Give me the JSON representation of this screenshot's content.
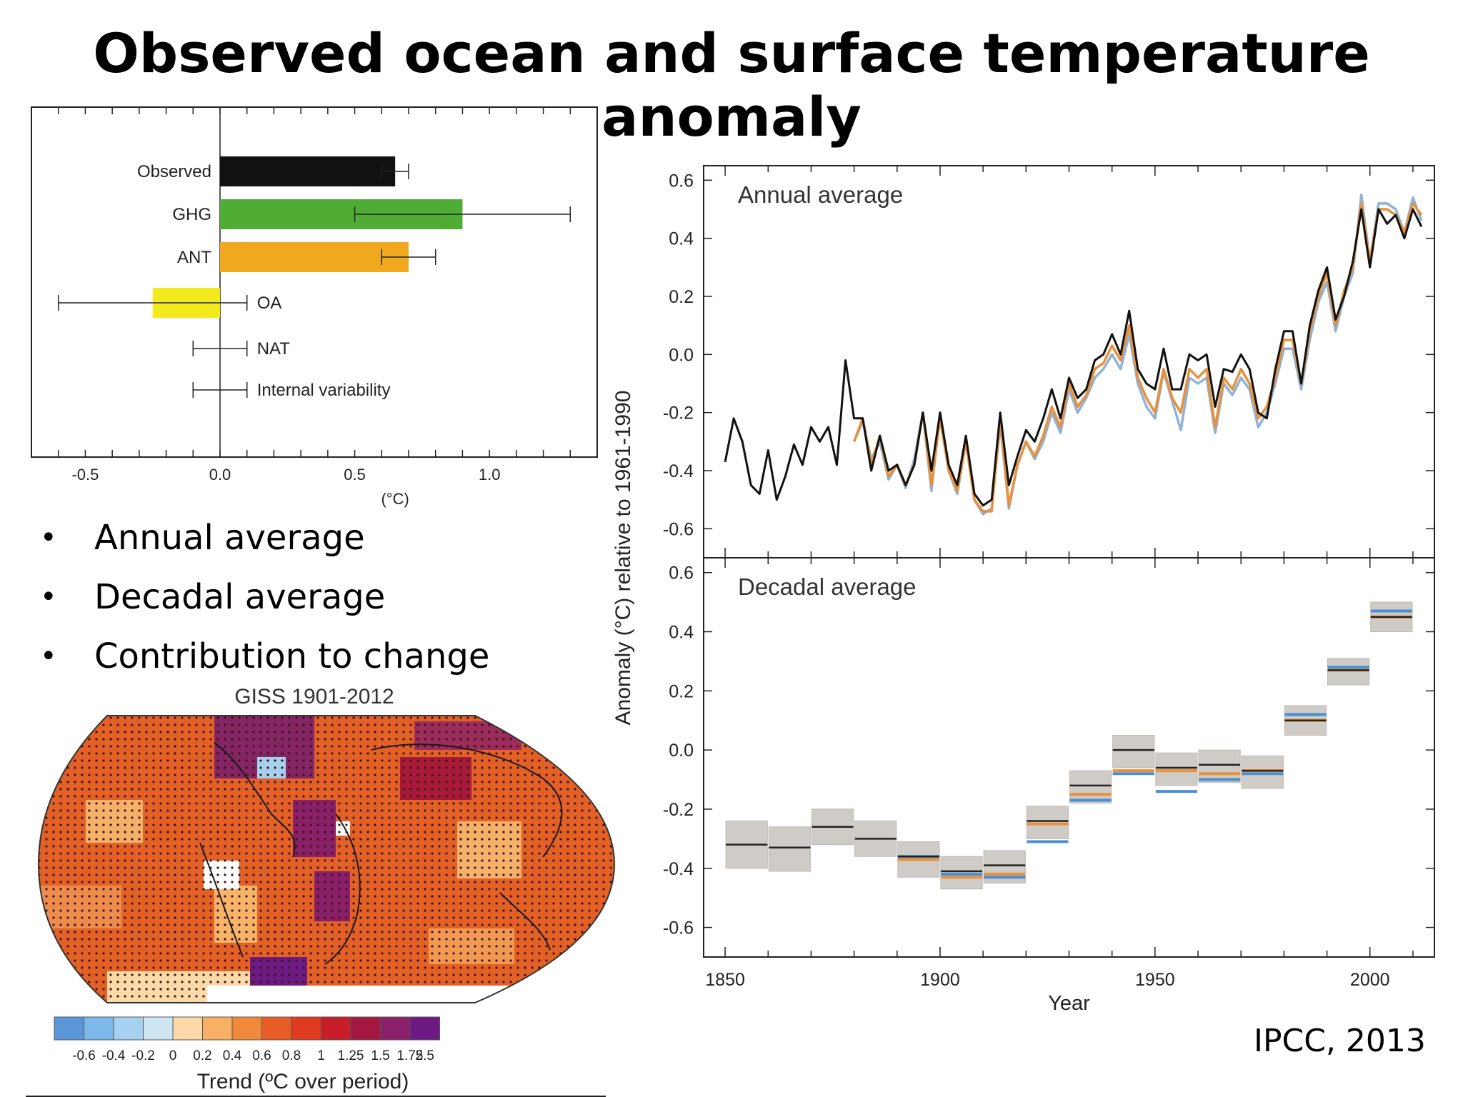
{
  "title": "Observed ocean and surface temperature anomaly",
  "bullets": [
    "Annual average",
    "Decadal average",
    "Contribution to change"
  ],
  "credit": "IPCC, 2013",
  "colors": {
    "observed": "#111111",
    "ghg": "#4fac34",
    "ant": "#f0a81f",
    "oa": "#f2ea1c",
    "series_orange": "#e8913c",
    "series_blue": "#8fb3d6",
    "decadal_box": "#cfcbc6",
    "decadal_blue": "#4a8fd4",
    "decadal_orange": "#e8913c"
  },
  "map": {
    "title": "GISS 1901-2012",
    "colorbar_label": "Trend (ºC over period)",
    "colorbar_ticks": [
      "-0.6",
      "-0.4",
      "-0.2",
      "0",
      "0.2",
      "0.4",
      "0.6",
      "0.8",
      "1",
      "1.25",
      "1.5",
      "1.75",
      "2.5"
    ],
    "colorbar_colors": [
      "#5b97d8",
      "#7cb9ea",
      "#a6d2f0",
      "#cde6f2",
      "#fbd9a8",
      "#f7b066",
      "#f08a3a",
      "#e85d25",
      "#e03a1f",
      "#c81e2a",
      "#a31740",
      "#8a1f6a",
      "#6e1a84"
    ]
  },
  "chart_data": [
    {
      "type": "bar",
      "orientation": "horizontal",
      "xlabel": "(°C)",
      "xlim": [
        -0.7,
        1.4
      ],
      "xticks": [
        "-0.5",
        "0.0",
        "0.5",
        "1.0"
      ],
      "categories": [
        "Observed",
        "GHG",
        "ANT",
        "OA",
        "NAT",
        "Internal variability"
      ],
      "values": [
        0.65,
        0.9,
        0.7,
        -0.25,
        0.0,
        0.0
      ],
      "error_low": [
        0.6,
        0.5,
        0.6,
        -0.6,
        -0.1,
        -0.1
      ],
      "error_high": [
        0.7,
        1.3,
        0.8,
        0.1,
        0.1,
        0.1
      ],
      "bar_colors": [
        "#111111",
        "#4fac34",
        "#f0a81f",
        "#f2ea1c",
        null,
        null
      ]
    },
    {
      "type": "line",
      "panel_label": "Annual average",
      "ylabel": "Anomaly (°C) relative to 1961-1990",
      "xlabel": "Year",
      "xlim": [
        1845,
        2015
      ],
      "ylim": [
        -0.7,
        0.65
      ],
      "yticks": [
        "0.6",
        "0.4",
        "0.2",
        "0.0",
        "-0.2",
        "-0.4",
        "-0.6"
      ],
      "xticks": [
        "1850",
        "1900",
        "1950",
        "2000"
      ],
      "x": [
        1850,
        1852,
        1854,
        1856,
        1858,
        1860,
        1862,
        1864,
        1866,
        1868,
        1870,
        1872,
        1874,
        1876,
        1878,
        1880,
        1882,
        1884,
        1886,
        1888,
        1890,
        1892,
        1894,
        1896,
        1898,
        1900,
        1902,
        1904,
        1906,
        1908,
        1910,
        1912,
        1914,
        1916,
        1918,
        1920,
        1922,
        1924,
        1926,
        1928,
        1930,
        1932,
        1934,
        1936,
        1938,
        1940,
        1942,
        1944,
        1946,
        1948,
        1950,
        1952,
        1954,
        1956,
        1958,
        1960,
        1962,
        1964,
        1966,
        1968,
        1970,
        1972,
        1974,
        1976,
        1978,
        1980,
        1982,
        1984,
        1986,
        1988,
        1990,
        1992,
        1994,
        1996,
        1998,
        2000,
        2002,
        2004,
        2006,
        2008,
        2010,
        2012
      ],
      "series": [
        {
          "values": [
            -0.37,
            -0.22,
            -0.3,
            -0.45,
            -0.48,
            -0.33,
            -0.5,
            -0.42,
            -0.31,
            -0.38,
            -0.25,
            -0.3,
            -0.25,
            -0.38,
            -0.02,
            -0.22,
            -0.22,
            -0.4,
            -0.28,
            -0.4,
            -0.38,
            -0.45,
            -0.38,
            -0.2,
            -0.4,
            -0.2,
            -0.38,
            -0.45,
            -0.28,
            -0.48,
            -0.52,
            -0.5,
            -0.2,
            -0.45,
            -0.35,
            -0.26,
            -0.3,
            -0.22,
            -0.12,
            -0.22,
            -0.08,
            -0.15,
            -0.12,
            -0.02,
            0.0,
            0.07,
            0.0,
            0.15,
            -0.05,
            -0.1,
            -0.12,
            0.02,
            -0.12,
            -0.12,
            0.0,
            -0.02,
            0.0,
            -0.18,
            -0.05,
            -0.06,
            0.0,
            -0.05,
            -0.2,
            -0.22,
            -0.05,
            0.08,
            0.08,
            -0.1,
            0.1,
            0.22,
            0.3,
            0.12,
            0.2,
            0.32,
            0.5,
            0.3,
            0.5,
            0.45,
            0.48,
            0.4,
            0.5,
            0.44
          ]
        },
        {
          "values": [
            null,
            null,
            null,
            null,
            null,
            null,
            null,
            null,
            null,
            null,
            null,
            null,
            null,
            null,
            null,
            -0.3,
            -0.22,
            -0.38,
            -0.28,
            -0.42,
            -0.38,
            -0.45,
            -0.38,
            -0.2,
            -0.45,
            -0.22,
            -0.4,
            -0.47,
            -0.3,
            -0.5,
            -0.54,
            -0.54,
            -0.22,
            -0.52,
            -0.38,
            -0.3,
            -0.35,
            -0.28,
            -0.18,
            -0.25,
            -0.1,
            -0.18,
            -0.14,
            -0.05,
            -0.03,
            0.03,
            -0.02,
            0.1,
            -0.08,
            -0.15,
            -0.2,
            -0.05,
            -0.15,
            -0.2,
            -0.05,
            -0.08,
            -0.05,
            -0.25,
            -0.08,
            -0.12,
            -0.05,
            -0.1,
            -0.22,
            -0.18,
            -0.08,
            0.05,
            0.05,
            -0.1,
            0.08,
            0.2,
            0.28,
            0.1,
            0.22,
            0.3,
            0.52,
            0.32,
            0.5,
            0.5,
            0.48,
            0.42,
            0.52,
            0.48
          ]
        },
        {
          "values": [
            null,
            null,
            null,
            null,
            null,
            null,
            null,
            null,
            null,
            null,
            null,
            null,
            null,
            null,
            null,
            -0.3,
            -0.23,
            -0.36,
            -0.3,
            -0.43,
            -0.38,
            -0.46,
            -0.36,
            -0.2,
            -0.47,
            -0.2,
            -0.4,
            -0.48,
            -0.3,
            -0.5,
            -0.55,
            -0.53,
            -0.24,
            -0.53,
            -0.38,
            -0.3,
            -0.36,
            -0.3,
            -0.2,
            -0.27,
            -0.12,
            -0.2,
            -0.15,
            -0.08,
            -0.05,
            0.0,
            -0.05,
            0.07,
            -0.1,
            -0.18,
            -0.22,
            -0.06,
            -0.16,
            -0.26,
            -0.08,
            -0.1,
            -0.08,
            -0.27,
            -0.1,
            -0.14,
            -0.08,
            -0.12,
            -0.25,
            -0.2,
            -0.1,
            0.02,
            0.02,
            -0.12,
            0.05,
            0.18,
            0.25,
            0.08,
            0.2,
            0.28,
            0.55,
            0.32,
            0.52,
            0.52,
            0.5,
            0.42,
            0.54,
            0.46
          ]
        }
      ]
    },
    {
      "type": "bar",
      "panel_label": "Decadal average",
      "ylim": [
        -0.7,
        0.65
      ],
      "yticks": [
        "0.6",
        "0.4",
        "0.2",
        "0.0",
        "-0.2",
        "-0.4",
        "-0.6"
      ],
      "xticks": [
        "1850",
        "1900",
        "1950",
        "2000"
      ],
      "decades": [
        1850,
        1860,
        1870,
        1880,
        1890,
        1900,
        1910,
        1920,
        1930,
        1940,
        1950,
        1960,
        1970,
        1980,
        1990,
        2000
      ],
      "values": [
        -0.32,
        -0.33,
        -0.26,
        -0.3,
        -0.36,
        -0.41,
        -0.39,
        -0.24,
        -0.12,
        0.0,
        -0.06,
        -0.05,
        -0.07,
        0.1,
        0.27,
        0.45
      ],
      "uncertainty_low": [
        -0.4,
        -0.41,
        -0.32,
        -0.36,
        -0.43,
        -0.47,
        -0.45,
        -0.3,
        -0.18,
        -0.06,
        -0.12,
        -0.11,
        -0.13,
        0.05,
        0.22,
        0.4
      ],
      "uncertainty_high": [
        -0.24,
        -0.26,
        -0.2,
        -0.24,
        -0.31,
        -0.36,
        -0.34,
        -0.19,
        -0.07,
        0.05,
        -0.01,
        0.0,
        -0.02,
        0.15,
        0.31,
        0.5
      ],
      "series_orange": [
        null,
        null,
        null,
        null,
        -0.37,
        -0.43,
        -0.42,
        -0.25,
        -0.15,
        -0.07,
        -0.07,
        -0.08,
        -0.07,
        0.1,
        0.27,
        0.45
      ],
      "series_blue": [
        null,
        null,
        null,
        null,
        -0.36,
        -0.42,
        -0.43,
        -0.31,
        -0.17,
        -0.08,
        -0.14,
        -0.1,
        -0.08,
        0.12,
        0.28,
        0.47
      ]
    }
  ]
}
